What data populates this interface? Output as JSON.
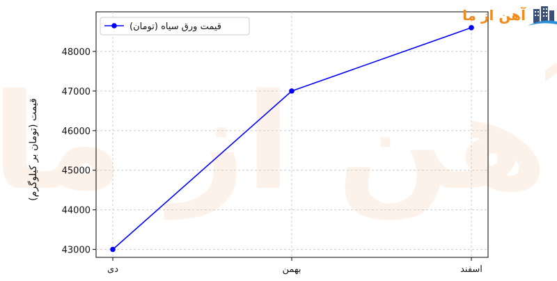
{
  "brand": {
    "name": "آهن از ما",
    "color": "#f28a1c",
    "icon": "building-icon",
    "watermark": "آهن از ما"
  },
  "chart_data": {
    "type": "line",
    "categories": [
      "دی",
      "بهمن",
      "اسفند"
    ],
    "series": [
      {
        "name": "قیمت ورق سیاه (تومان)",
        "values": [
          43000,
          47000,
          48600
        ],
        "color": "#0000ff",
        "marker": "circle"
      }
    ],
    "title": "",
    "xlabel": "",
    "ylabel": "قیمت (تومان بر کیلوگرم)",
    "ylim": [
      42800,
      49000
    ],
    "yticks": [
      43000,
      44000,
      45000,
      46000,
      47000,
      48000
    ],
    "grid": true,
    "legend_position": "top-left"
  }
}
